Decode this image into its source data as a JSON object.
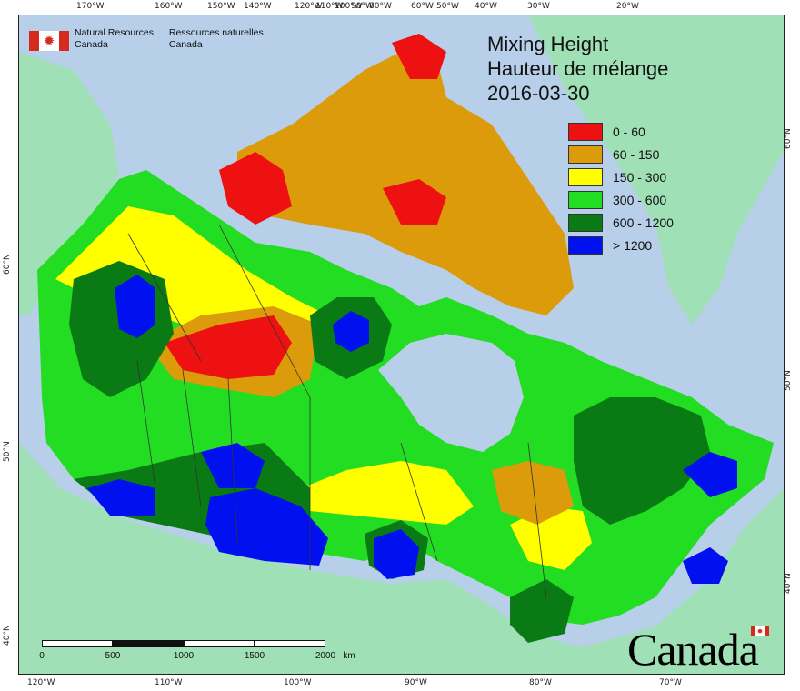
{
  "top_ticks": [
    "170°W",
    "160°W",
    "150°W",
    "140°W",
    "120°W",
    "110°W",
    "100°W",
    "90°W",
    "80°W",
    "60°W",
    "50°W",
    "40°W",
    "30°W",
    "20°W"
  ],
  "bottom_ticks": [
    "120°W",
    "110°W",
    "100°W",
    "90°W",
    "80°W",
    "70°W"
  ],
  "left_ticks": [
    "60°N",
    "50°N",
    "40°N"
  ],
  "right_ticks": [
    "60°N",
    "50°N",
    "40°N"
  ],
  "logo": {
    "en_line1": "Natural Resources",
    "en_line2": "Canada",
    "fr_line1": "Ressources naturelles",
    "fr_line2": "Canada"
  },
  "title": {
    "line1": "Mixing Height",
    "line2": "Hauteur de mélange",
    "date": "2016-03-30"
  },
  "legend": [
    {
      "label": "0 - 60",
      "color": "#ee1111"
    },
    {
      "label": "60 - 150",
      "color": "#dc9b0a"
    },
    {
      "label": "150 - 300",
      "color": "#ffff00"
    },
    {
      "label": "300 - 600",
      "color": "#22dd22"
    },
    {
      "label": "600 - 1200",
      "color": "#0a7a14"
    },
    {
      "label": "> 1200",
      "color": "#0010ee"
    }
  ],
  "scale": {
    "labels": [
      "0",
      "500",
      "1000",
      "1500",
      "2000"
    ],
    "unit": "km"
  },
  "wordmark": "Canada",
  "colors": {
    "ocean": "#b7cfe9",
    "foreign_land": "#9fe0b6"
  }
}
